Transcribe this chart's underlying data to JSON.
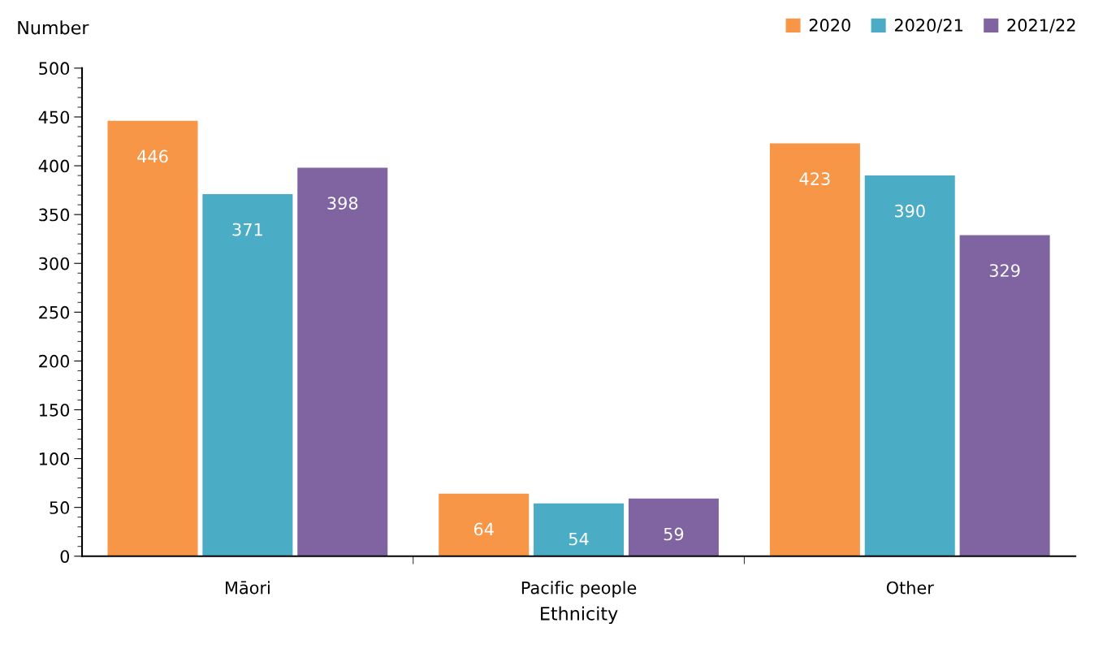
{
  "chart_data": {
    "type": "bar",
    "xlabel": "Ethnicity",
    "ylabel": "Number",
    "categories": [
      "Māori",
      "Pacific people",
      "Other"
    ],
    "series": [
      {
        "name": "2020",
        "color": "#f79646",
        "values": [
          446,
          64,
          423
        ]
      },
      {
        "name": "2020/21",
        "color": "#4bacc6",
        "values": [
          371,
          54,
          390
        ]
      },
      {
        "name": "2021/22",
        "color": "#8064a2",
        "values": [
          398,
          59,
          329
        ]
      }
    ],
    "ylim": [
      0,
      500
    ],
    "yticks": [
      0,
      50,
      100,
      150,
      200,
      250,
      300,
      350,
      400,
      450,
      500
    ],
    "data_labels": true,
    "grid": false,
    "legend": "top right"
  }
}
